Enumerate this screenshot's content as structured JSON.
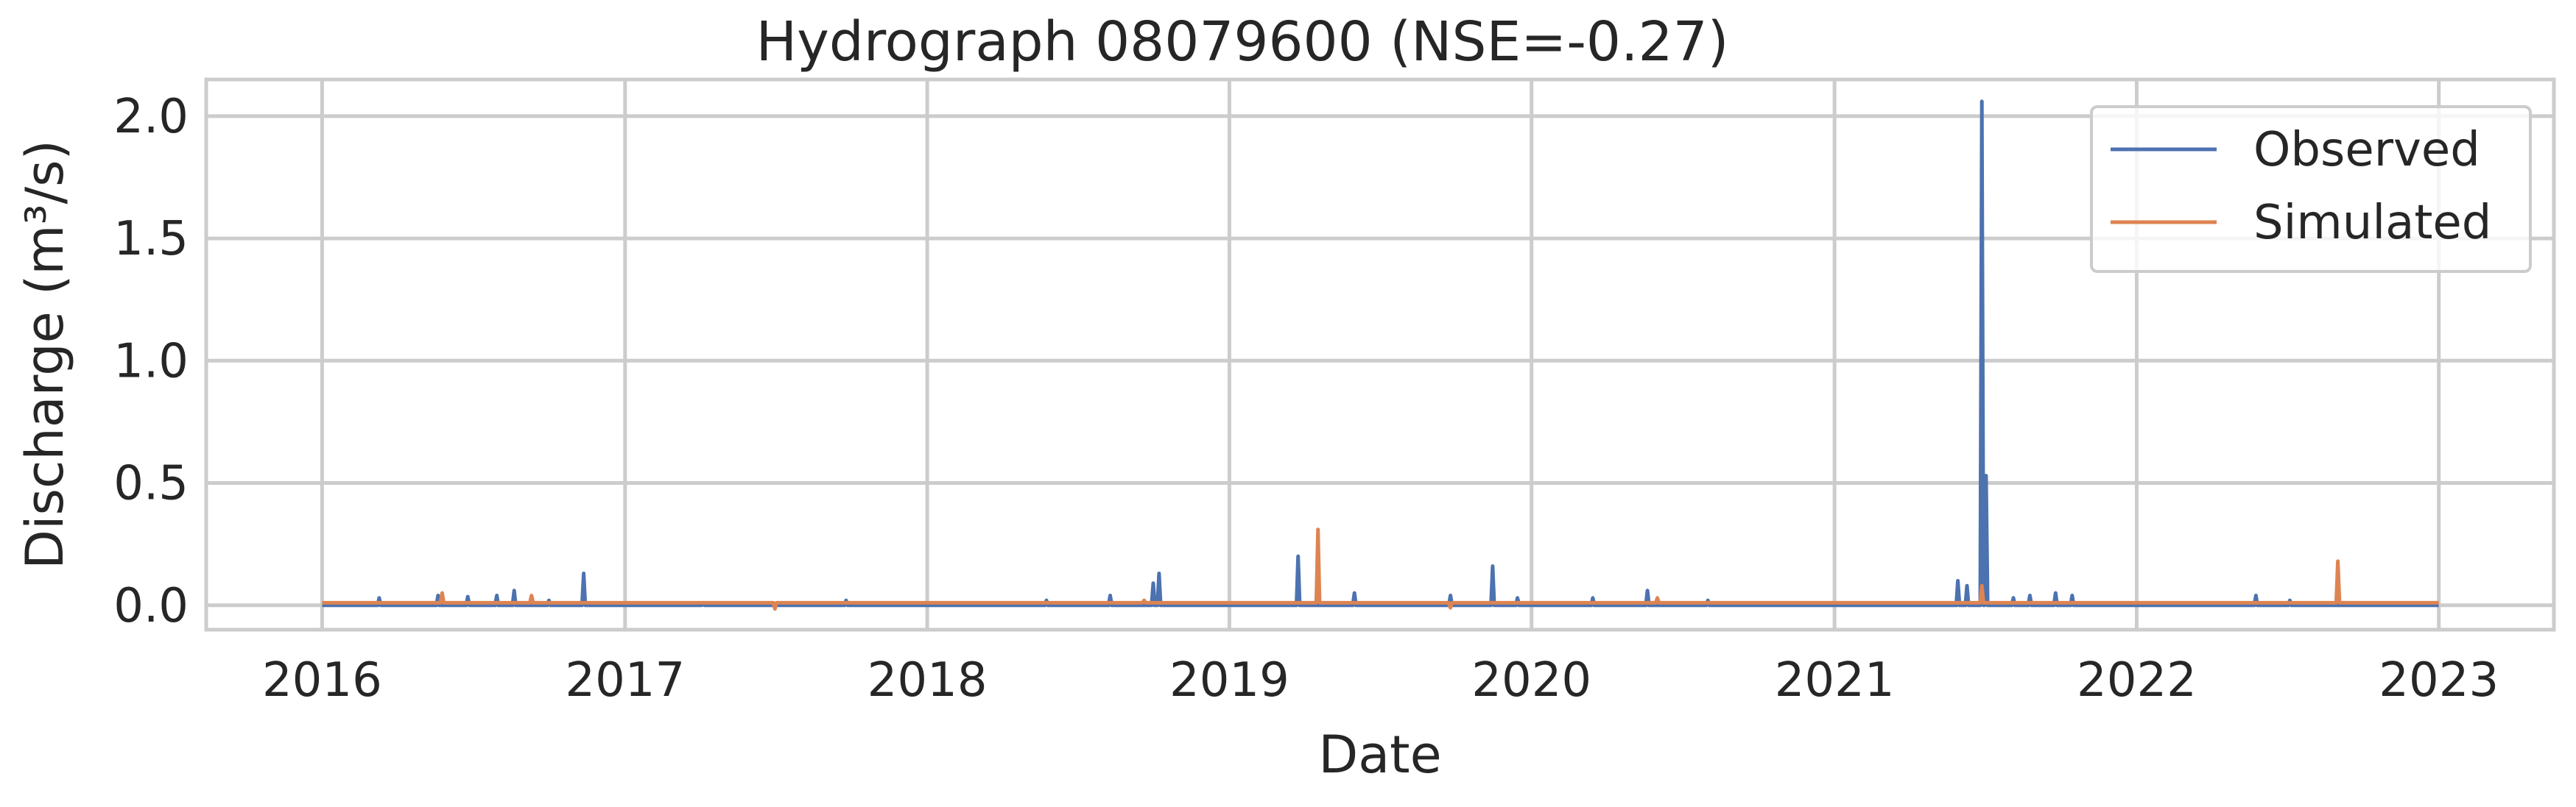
{
  "chart_data": {
    "type": "line",
    "title": "Hydrograph 08079600  (NSE=-0.27)",
    "xlabel": "Date",
    "ylabel": "Discharge (m³/s)",
    "xlim": [
      "2015-08-14",
      "2023-05-20"
    ],
    "ylim": [
      -0.1,
      2.15
    ],
    "x_ticks": [
      "2016",
      "2017",
      "2018",
      "2019",
      "2020",
      "2021",
      "2022",
      "2023"
    ],
    "y_ticks": [
      "0.0",
      "0.5",
      "1.0",
      "1.5",
      "2.0"
    ],
    "grid": true,
    "legend_position": "top-right",
    "date_range": [
      "2016-01-01",
      "2023-01-01"
    ],
    "series": [
      {
        "name": "Observed",
        "color": "#4c72b0",
        "baseline": 0.0,
        "spikes": [
          [
            "2016-03-10",
            0.03
          ],
          [
            "2016-05-20",
            0.04
          ],
          [
            "2016-06-25",
            0.035
          ],
          [
            "2016-07-30",
            0.04
          ],
          [
            "2016-08-20",
            0.06
          ],
          [
            "2016-10-01",
            0.02
          ],
          [
            "2016-11-12",
            0.13
          ],
          [
            "2017-04-05",
            0.01
          ],
          [
            "2017-09-25",
            0.02
          ],
          [
            "2018-05-25",
            0.02
          ],
          [
            "2018-08-10",
            0.04
          ],
          [
            "2018-10-01",
            0.09
          ],
          [
            "2018-10-08",
            0.13
          ],
          [
            "2019-03-25",
            0.2
          ],
          [
            "2019-06-01",
            0.05
          ],
          [
            "2019-09-25",
            0.04
          ],
          [
            "2019-11-15",
            0.16
          ],
          [
            "2019-12-15",
            0.03
          ],
          [
            "2020-03-15",
            0.03
          ],
          [
            "2020-05-20",
            0.06
          ],
          [
            "2020-08-01",
            0.02
          ],
          [
            "2021-05-30",
            0.1
          ],
          [
            "2021-06-10",
            0.08
          ],
          [
            "2021-06-28",
            2.06
          ],
          [
            "2021-07-03",
            0.53
          ],
          [
            "2021-08-05",
            0.03
          ],
          [
            "2021-08-25",
            0.04
          ],
          [
            "2021-09-25",
            0.05
          ],
          [
            "2021-10-15",
            0.04
          ],
          [
            "2022-05-25",
            0.04
          ],
          [
            "2022-07-05",
            0.02
          ]
        ]
      },
      {
        "name": "Simulated",
        "color": "#dd8452",
        "baseline": 0.01,
        "spikes": [
          [
            "2016-05-25",
            0.05
          ],
          [
            "2016-09-10",
            0.04
          ],
          [
            "2017-07-01",
            -0.015
          ],
          [
            "2018-09-20",
            0.02
          ],
          [
            "2019-04-18",
            0.31
          ],
          [
            "2019-09-25",
            -0.01
          ],
          [
            "2020-06-01",
            0.03
          ],
          [
            "2021-06-28",
            0.08
          ],
          [
            "2022-09-01",
            0.18
          ]
        ]
      }
    ]
  }
}
